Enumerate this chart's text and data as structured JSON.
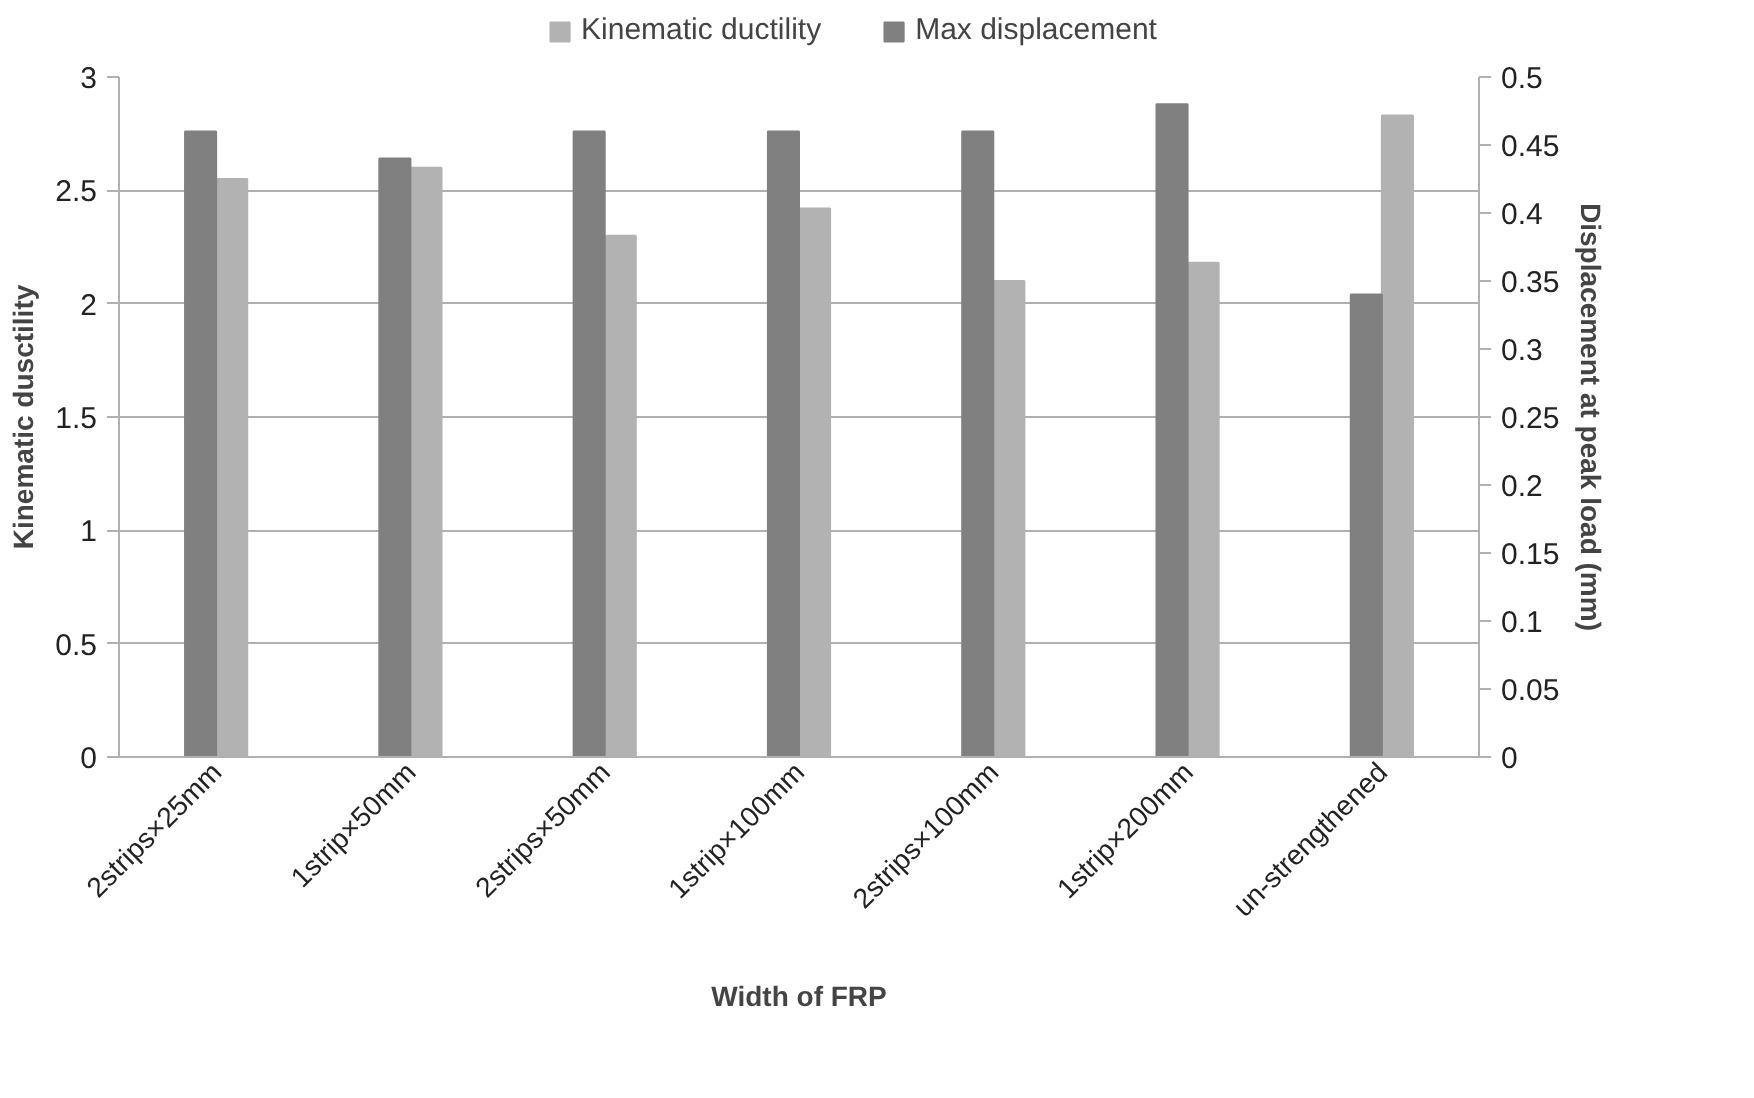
{
  "chart_data": {
    "type": "bar",
    "xlabel": "Width of FRP",
    "ylabel": "Kinematic dusctility",
    "y2label": "Displacement at peak load (mm)",
    "categories": [
      "2strips×25mm",
      "1strip×50mm",
      "2strips×50mm",
      "1strip×100mm",
      "2strips×100mm",
      "1strip×200mm",
      "un-strengthened"
    ],
    "series": [
      {
        "name": "Kinematic ductility",
        "color": "#b2b2b2",
        "values": [
          2.55,
          2.6,
          2.3,
          2.42,
          2.1,
          2.18,
          2.83
        ]
      },
      {
        "name": "Max displacement",
        "color": "#808080",
        "axis": "y2",
        "values": [
          0.46,
          0.44,
          0.46,
          0.46,
          0.46,
          0.48,
          0.34
        ]
      }
    ],
    "ylim": [
      0,
      3
    ],
    "yticks": [
      0,
      0.5,
      1,
      1.5,
      2,
      2.5,
      3
    ],
    "y2lim": [
      0,
      0.5
    ],
    "y2ticks": [
      0,
      0.05,
      0.1,
      0.15,
      0.2,
      0.25,
      0.3,
      0.35,
      0.4,
      0.45,
      0.5
    ],
    "grid": "y",
    "legend": "top"
  }
}
